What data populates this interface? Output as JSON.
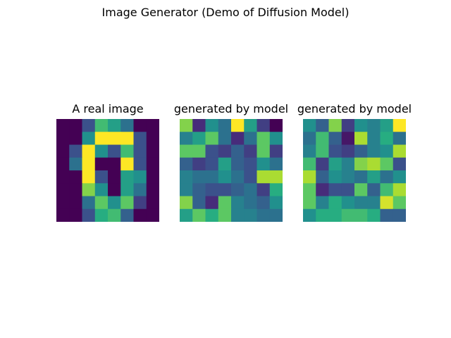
{
  "figure": {
    "suptitle": "Image Generator (Demo of Diffusion Model)"
  },
  "chart_data": [
    {
      "type": "heatmap",
      "title": "A real image",
      "colormap": "viridis",
      "vmin": 0,
      "vmax": 16,
      "axes": "off",
      "values": [
        [
          0,
          0,
          4,
          11,
          9,
          6,
          0,
          0
        ],
        [
          0,
          0,
          8,
          16,
          16,
          16,
          4,
          0
        ],
        [
          0,
          4,
          16,
          8,
          4,
          11,
          4,
          0
        ],
        [
          0,
          6,
          16,
          0,
          0,
          16,
          4,
          0
        ],
        [
          0,
          0,
          16,
          4,
          0,
          9,
          8,
          0
        ],
        [
          0,
          0,
          13,
          8,
          0,
          9,
          6,
          0
        ],
        [
          0,
          0,
          6,
          12,
          8,
          12,
          3,
          0
        ],
        [
          0,
          0,
          4,
          10,
          11,
          5,
          0,
          0
        ]
      ]
    },
    {
      "type": "heatmap",
      "title": "generated by model",
      "colormap": "viridis",
      "vmin": 0,
      "vmax": 16,
      "axes": "off",
      "values": [
        [
          13,
          2,
          8,
          6,
          16,
          9,
          3,
          0
        ],
        [
          7,
          9,
          12,
          6,
          2,
          6,
          12,
          8
        ],
        [
          12,
          12,
          4,
          3,
          5,
          3,
          12,
          3
        ],
        [
          5,
          3,
          4,
          9,
          5,
          4,
          8,
          6
        ],
        [
          7,
          6,
          6,
          8,
          6,
          4,
          14,
          14
        ],
        [
          7,
          5,
          4,
          4,
          5,
          6,
          3,
          10
        ],
        [
          13,
          5,
          2,
          12,
          7,
          6,
          5,
          8
        ],
        [
          9,
          12,
          10,
          12,
          7,
          7,
          6,
          6
        ]
      ]
    },
    {
      "type": "heatmap",
      "title": "generated by model",
      "colormap": "viridis",
      "vmin": 0,
      "vmax": 16,
      "axes": "off",
      "values": [
        [
          8,
          5,
          13,
          3,
          8,
          7,
          9,
          16
        ],
        [
          6,
          11,
          5,
          1,
          14,
          7,
          10,
          6
        ],
        [
          7,
          11,
          4,
          3,
          5,
          7,
          8,
          14
        ],
        [
          11,
          3,
          9,
          7,
          13,
          14,
          12,
          4
        ],
        [
          14,
          5,
          8,
          7,
          6,
          9,
          6,
          8
        ],
        [
          12,
          2,
          4,
          4,
          12,
          5,
          11,
          14
        ],
        [
          12,
          7,
          10,
          8,
          7,
          7,
          15,
          12
        ],
        [
          8,
          10,
          10,
          11,
          11,
          10,
          5,
          5
        ]
      ]
    }
  ]
}
